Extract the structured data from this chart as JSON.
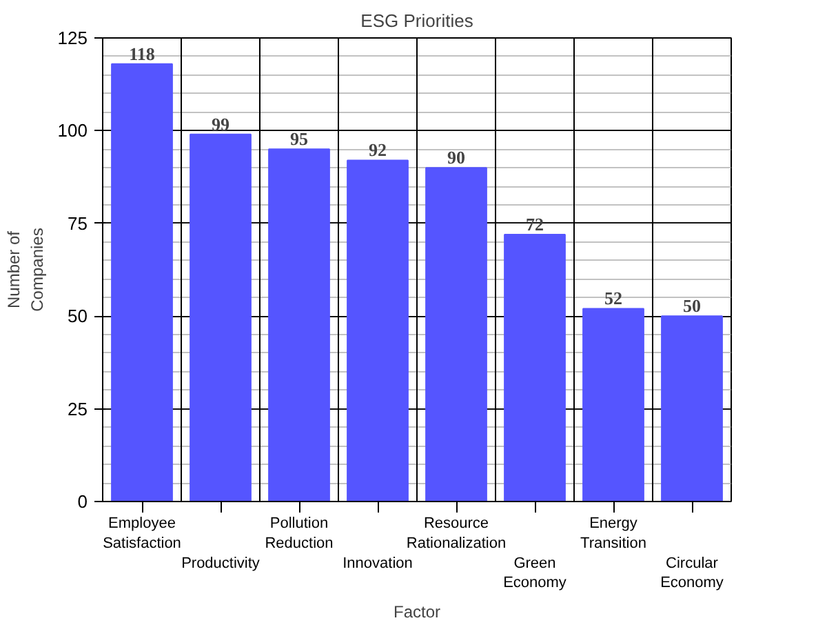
{
  "chart_data": {
    "type": "bar",
    "title": "ESG Priorities",
    "xlabel": "Factor",
    "ylabel": "Number of Companies",
    "categories": [
      "Employee Satisfaction",
      "Productivity",
      "Pollution Reduction",
      "Innovation",
      "Resource Rationalization",
      "Green Economy",
      "Energy Transition",
      "Circular Economy"
    ],
    "values": [
      118,
      99,
      95,
      92,
      90,
      72,
      52,
      50
    ],
    "color": "#5555ff",
    "ylim": [
      0,
      125
    ],
    "yticks": [
      0,
      25,
      50,
      75,
      100,
      125
    ],
    "grid": true,
    "data_labels": true
  }
}
